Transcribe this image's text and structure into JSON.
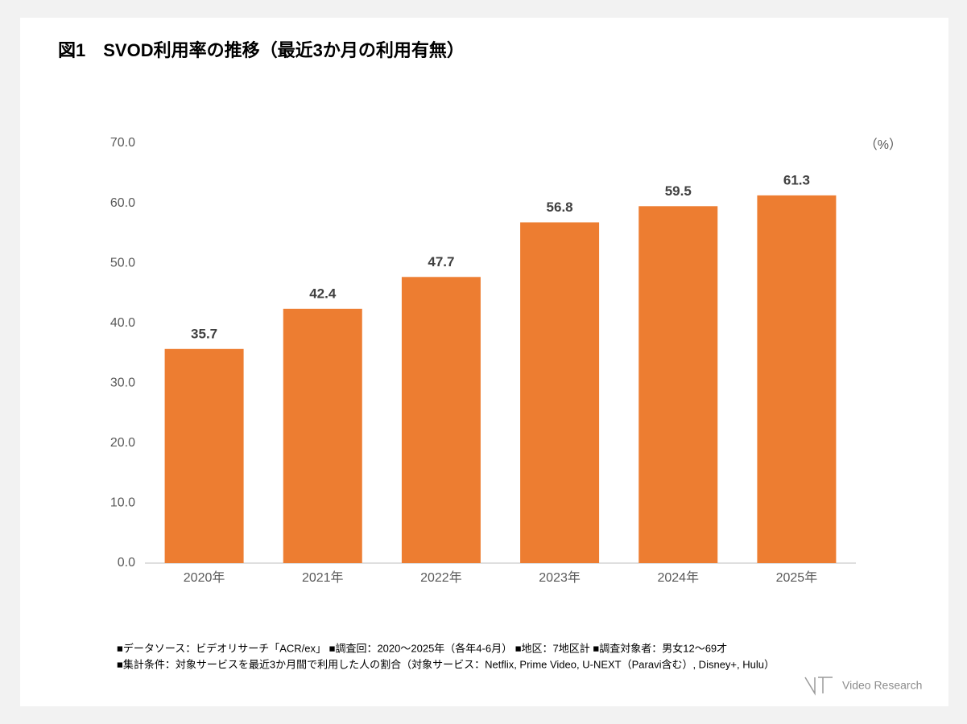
{
  "chart_data": {
    "type": "bar",
    "title": "図1　SVOD利用率の推移（最近3か月の利用有無）",
    "unit_label": "（%）",
    "categories": [
      "2020年",
      "2021年",
      "2022年",
      "2023年",
      "2024年",
      "2025年"
    ],
    "values": [
      35.7,
      42.4,
      47.7,
      56.8,
      59.5,
      61.3
    ],
    "color": "#ed7d31",
    "ylim": [
      0,
      70
    ],
    "yticks": [
      {
        "value": 0,
        "label": "0.0"
      },
      {
        "value": 10,
        "label": "10.0"
      },
      {
        "value": 20,
        "label": "20.0"
      },
      {
        "value": 30,
        "label": "30.0"
      },
      {
        "value": 40,
        "label": "40.0"
      },
      {
        "value": 50,
        "label": "50.0"
      },
      {
        "value": 60,
        "label": "60.0"
      },
      {
        "value": 70,
        "label": "70.0"
      }
    ],
    "grid": false,
    "notes": [
      "■データソース：ビデオリサーチ「ACR/ex」 ■調査回：2020～2025年（各年4-6月） ■地区：7地区計 ■調査対象者：男女12～69才",
      "■集計条件：対象サービスを最近3か月間で利用した人の割合（対象サービス：Netflix, Prime Video, U-NEXT（Paravi含む）, Disney+, Hulu）"
    ],
    "logo": "Video Research"
  }
}
